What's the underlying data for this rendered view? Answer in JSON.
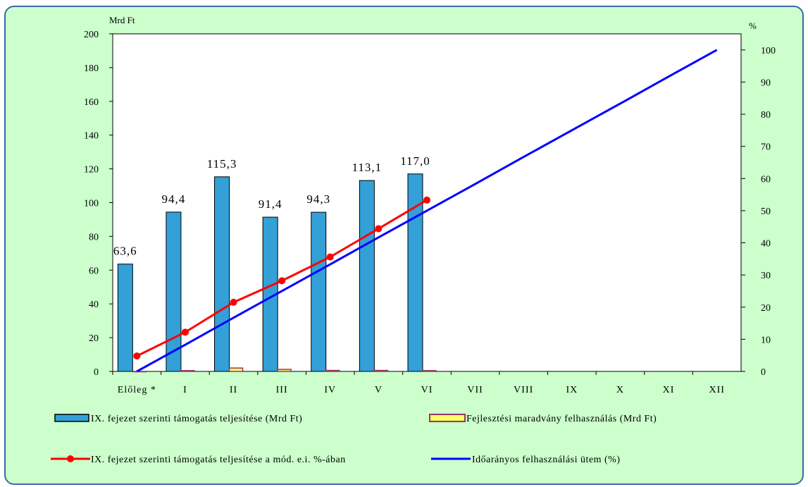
{
  "chart_data": {
    "type": "bar",
    "y_unit_left": "Mrd Ft",
    "y_unit_right": "%",
    "categories": [
      "Előleg *",
      "I",
      "II",
      "III",
      "IV",
      "V",
      "VI",
      "VII",
      "VIII",
      "IX",
      "X",
      "XI",
      "XII"
    ],
    "ylim_left": [
      0,
      200
    ],
    "yticks_left": [
      "0",
      "20",
      "40",
      "60",
      "80",
      "100",
      "120",
      "140",
      "160",
      "180",
      "200"
    ],
    "ylim_right": [
      0,
      105
    ],
    "yticks_right": [
      "0",
      "10",
      "20",
      "30",
      "40",
      "50",
      "60",
      "70",
      "80",
      "90",
      "100"
    ],
    "series": [
      {
        "name": "IX. fejezet szerinti támogatás teljesítése (Mrd Ft)",
        "kind": "bar",
        "axis": "left",
        "color": "#33a0d8",
        "values": [
          63.6,
          94.4,
          115.3,
          91.4,
          94.3,
          113.1,
          117.0,
          null,
          null,
          null,
          null,
          null,
          null
        ],
        "labels": [
          "63,6",
          "94,4",
          "115,3",
          "91,4",
          "94,3",
          "113,1",
          "117,0",
          "",
          "",
          "",
          "",
          "",
          ""
        ]
      },
      {
        "name": "Fejlesztési maradvány felhasználás (Mrd Ft)",
        "kind": "bar",
        "axis": "left",
        "color": "#ffff66",
        "edge_color": "#993366",
        "values": [
          0,
          0.5,
          2.0,
          1.2,
          0.6,
          0.6,
          0.5,
          null,
          null,
          null,
          null,
          null,
          null
        ]
      },
      {
        "name": "IX. fejezet szerinti támogatás teljesítése a mód. e.i. %-ában",
        "kind": "line",
        "axis": "right",
        "color": "#ff0000",
        "marker": "circle",
        "values": [
          4.8,
          12.2,
          21.5,
          28.2,
          35.6,
          44.4,
          53.3,
          null,
          null,
          null,
          null,
          null,
          null
        ]
      },
      {
        "name": "Időarányos felhasználási ütem (%)",
        "kind": "line",
        "axis": "right",
        "color": "#0000ff",
        "values": [
          0,
          8.3,
          16.7,
          25.0,
          33.3,
          41.7,
          50.0,
          58.3,
          66.7,
          75.0,
          83.3,
          91.7,
          100.0
        ]
      }
    ],
    "legend_position": "bottom",
    "grid": false
  }
}
